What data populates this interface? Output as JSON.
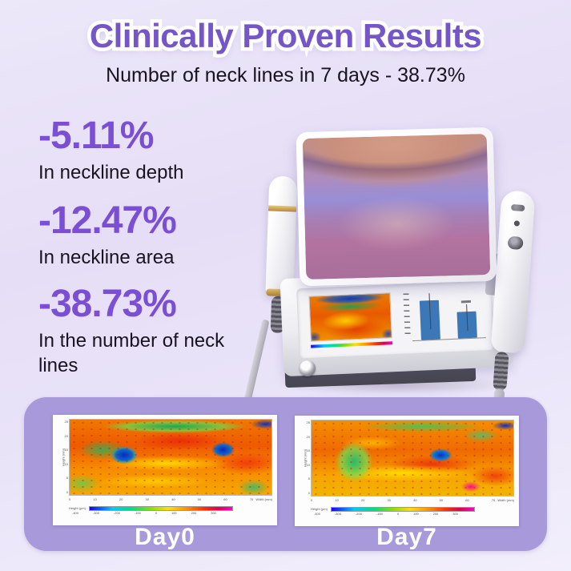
{
  "colors": {
    "accent_purple": "#7456C9",
    "stat_purple": "#7A4FD4",
    "panel_purple": "#A89ADA",
    "bar_blue": "#3C77B8",
    "day_label_white": "#FFFFFF"
  },
  "header": {
    "title": "Clinically Proven Results",
    "subtitle": "Number of neck lines in 7 days - 38.73%"
  },
  "stats": [
    {
      "value": "-5.11%",
      "label": "In neckline depth"
    },
    {
      "value": "-12.47%",
      "label": "In neckline area"
    },
    {
      "value": "-38.73%",
      "label": "In the number of neck lines"
    }
  ],
  "device": {
    "mini_chart": {
      "bars": [
        0.78,
        0.52
      ],
      "bar_color": "#3C77B8"
    }
  },
  "comparison": {
    "panel_color": "#A89ADA",
    "items": [
      {
        "label": "Day0"
      },
      {
        "label": "Day7"
      }
    ],
    "axis": {
      "ylabel": "Height (mm)",
      "xlabel": "Width (mm)",
      "colorbar_label": "Height (μm)",
      "y_ticks": [
        "25",
        "20",
        "15",
        "10",
        "5",
        "0"
      ],
      "x_ticks": [
        "0",
        "10",
        "20",
        "30",
        "40",
        "50",
        "60",
        "70"
      ],
      "colorbar_ticks": [
        "-400",
        "-300",
        "-200",
        "-100",
        "0",
        "100",
        "200",
        "300"
      ]
    }
  }
}
